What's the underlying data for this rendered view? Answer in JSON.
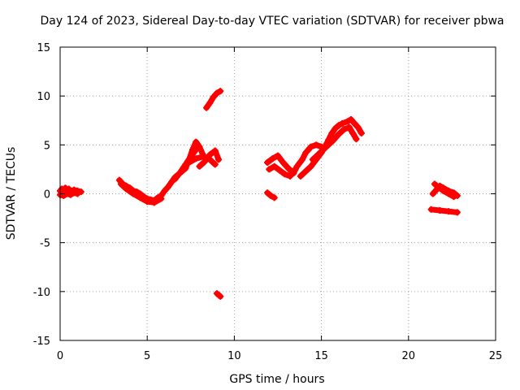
{
  "chart_data": {
    "type": "scatter",
    "title": "Day 124 of 2023, Sidereal Day-to-day VTEC variation (SDTVAR) for receiver pbwa",
    "xlabel": "GPS time / hours",
    "ylabel": "SDTVAR / TECUs",
    "xlim": [
      0,
      25
    ],
    "ylim": [
      -15,
      15
    ],
    "xticks": [
      "0",
      "5",
      "10",
      "15",
      "20",
      "25"
    ],
    "yticks": [
      "-15",
      "-10",
      "-5",
      "0",
      "5",
      "10",
      "15"
    ],
    "grid": true,
    "series": [
      {
        "name": "SDTVAR",
        "color": "#ff0000",
        "segments": [
          [
            [
              0.0,
              0.3
            ],
            [
              0.1,
              0.5
            ],
            [
              0.2,
              0.2
            ],
            [
              0.3,
              0.6
            ],
            [
              0.4,
              0.4
            ],
            [
              0.5,
              0.5
            ],
            [
              0.6,
              0.2
            ],
            [
              0.7,
              0.3
            ],
            [
              0.8,
              0.4
            ],
            [
              0.9,
              0.3
            ],
            [
              1.0,
              0.3
            ],
            [
              1.2,
              0.2
            ]
          ],
          [
            [
              0.0,
              -0.1
            ],
            [
              0.2,
              -0.2
            ],
            [
              0.4,
              0.0
            ],
            [
              0.6,
              -0.1
            ],
            [
              0.8,
              0.1
            ],
            [
              1.0,
              0.0
            ]
          ],
          [
            [
              3.4,
              1.4
            ],
            [
              3.6,
              1.0
            ],
            [
              3.8,
              0.8
            ],
            [
              4.0,
              0.6
            ],
            [
              4.2,
              0.3
            ],
            [
              4.4,
              0.2
            ],
            [
              4.6,
              0.0
            ],
            [
              4.8,
              -0.3
            ],
            [
              5.0,
              -0.5
            ],
            [
              5.2,
              -0.6
            ],
            [
              5.4,
              -0.7
            ],
            [
              5.6,
              -0.4
            ],
            [
              5.8,
              -0.2
            ],
            [
              6.0,
              0.3
            ],
            [
              6.2,
              0.7
            ],
            [
              6.4,
              1.2
            ],
            [
              6.6,
              1.7
            ],
            [
              6.8,
              2.0
            ],
            [
              7.0,
              2.3
            ],
            [
              7.2,
              2.6
            ],
            [
              7.4,
              3.5
            ],
            [
              7.6,
              4.5
            ],
            [
              7.8,
              5.3
            ],
            [
              8.0,
              4.8
            ],
            [
              8.2,
              4.0
            ]
          ],
          [
            [
              3.5,
              1.0
            ],
            [
              3.8,
              0.5
            ],
            [
              4.2,
              0.0
            ],
            [
              4.6,
              -0.4
            ],
            [
              5.0,
              -0.8
            ],
            [
              5.4,
              -0.9
            ],
            [
              5.8,
              -0.5
            ]
          ],
          [
            [
              6.6,
              1.5
            ],
            [
              6.9,
              2.2
            ],
            [
              7.2,
              3.0
            ],
            [
              7.5,
              3.8
            ],
            [
              7.8,
              4.5
            ]
          ],
          [
            [
              7.4,
              3.2
            ],
            [
              7.8,
              3.6
            ],
            [
              8.2,
              3.8
            ],
            [
              8.6,
              3.5
            ],
            [
              8.9,
              3.0
            ]
          ],
          [
            [
              8.0,
              2.8
            ],
            [
              8.3,
              3.3
            ],
            [
              8.6,
              4.0
            ],
            [
              8.9,
              4.4
            ],
            [
              9.1,
              3.5
            ]
          ],
          [
            [
              8.4,
              8.8
            ],
            [
              8.6,
              9.3
            ],
            [
              8.8,
              9.9
            ],
            [
              9.0,
              10.3
            ],
            [
              9.2,
              10.5
            ]
          ],
          [
            [
              9.0,
              -10.2
            ],
            [
              9.2,
              -10.5
            ]
          ],
          [
            [
              11.9,
              0.1
            ],
            [
              12.1,
              -0.2
            ],
            [
              12.3,
              -0.4
            ]
          ],
          [
            [
              11.9,
              3.2
            ],
            [
              12.2,
              3.6
            ],
            [
              12.5,
              3.9
            ],
            [
              12.8,
              3.2
            ],
            [
              13.1,
              2.6
            ],
            [
              13.4,
              2.1
            ],
            [
              13.6,
              2.8
            ],
            [
              13.9,
              3.5
            ],
            [
              14.1,
              4.2
            ],
            [
              14.4,
              4.8
            ],
            [
              14.7,
              5.0
            ],
            [
              15.0,
              4.8
            ]
          ],
          [
            [
              12.0,
              2.5
            ],
            [
              12.3,
              2.8
            ],
            [
              12.6,
              2.4
            ],
            [
              12.9,
              2.0
            ],
            [
              13.2,
              1.8
            ],
            [
              13.5,
              2.5
            ]
          ],
          [
            [
              13.8,
              1.8
            ],
            [
              14.1,
              2.3
            ],
            [
              14.4,
              2.8
            ],
            [
              14.7,
              3.5
            ],
            [
              15.0,
              4.2
            ],
            [
              15.2,
              4.8
            ],
            [
              15.4,
              5.5
            ],
            [
              15.6,
              6.2
            ],
            [
              15.8,
              6.7
            ],
            [
              16.0,
              7.0
            ],
            [
              16.2,
              7.2
            ],
            [
              16.5,
              7.4
            ],
            [
              16.7,
              7.6
            ],
            [
              16.9,
              7.2
            ],
            [
              17.1,
              6.8
            ],
            [
              17.3,
              6.2
            ]
          ],
          [
            [
              14.5,
              3.5
            ],
            [
              14.8,
              4.0
            ],
            [
              15.1,
              4.5
            ],
            [
              15.4,
              5.0
            ],
            [
              15.7,
              5.5
            ],
            [
              16.0,
              6.1
            ],
            [
              16.3,
              6.6
            ],
            [
              16.6,
              6.8
            ],
            [
              16.8,
              6.2
            ],
            [
              17.0,
              5.6
            ]
          ],
          [
            [
              21.4,
              0.0
            ],
            [
              21.6,
              0.4
            ],
            [
              21.8,
              0.8
            ],
            [
              22.0,
              0.6
            ],
            [
              22.3,
              0.3
            ],
            [
              22.6,
              0.1
            ],
            [
              22.8,
              -0.2
            ]
          ],
          [
            [
              21.5,
              1.0
            ],
            [
              21.7,
              0.7
            ],
            [
              22.0,
              0.3
            ],
            [
              22.3,
              0.0
            ],
            [
              22.6,
              -0.3
            ]
          ],
          [
            [
              21.3,
              -1.6
            ],
            [
              21.8,
              -1.7
            ],
            [
              22.3,
              -1.8
            ],
            [
              22.8,
              -1.9
            ]
          ]
        ]
      }
    ]
  }
}
